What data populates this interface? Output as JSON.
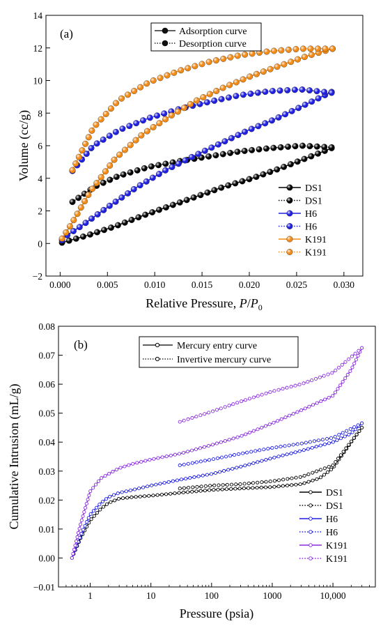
{
  "chart_data": [
    {
      "type": "line",
      "panel_label": "(a)",
      "xlabel_prefix": "Relative Pressure, ",
      "xlabel_var": "P",
      "xlabel_slash": "/",
      "xlabel_var2": "P",
      "xlabel_sub": "0",
      "ylabel": "Volume  (cc/g)",
      "xlim": [
        -0.0015,
        0.032
      ],
      "ylim": [
        -2,
        14
      ],
      "xticks": [
        0.0,
        0.005,
        0.01,
        0.015,
        0.02,
        0.025,
        0.03
      ],
      "xtick_labels": [
        "0.000",
        "0.005",
        "0.010",
        "0.015",
        "0.020",
        "0.025",
        "0.030"
      ],
      "yticks": [
        -2,
        0,
        2,
        4,
        6,
        8,
        10,
        12,
        14
      ],
      "ytick_labels": [
        "−2",
        "0",
        "2",
        "4",
        "6",
        "8",
        "10",
        "12",
        "14"
      ],
      "style_legend": [
        {
          "label": "Adsorption curve",
          "dash": "solid"
        },
        {
          "label": "Desorption curve",
          "dash": "dotted"
        }
      ],
      "legend_position": "bottom-right",
      "series": [
        {
          "name": "DS1",
          "color": "#000000",
          "dash": "solid",
          "marker": "ball",
          "x": [
            0.0002,
            0.0029,
            0.0058,
            0.0087,
            0.0116,
            0.0145,
            0.0174,
            0.0203,
            0.0232,
            0.0261,
            0.0287
          ],
          "y": [
            0.05,
            0.5,
            1.05,
            1.7,
            2.3,
            2.9,
            3.5,
            4.0,
            4.6,
            5.25,
            5.85
          ]
        },
        {
          "name": "DS1",
          "color": "#000000",
          "dash": "dotted",
          "marker": "ball",
          "x": [
            0.0287,
            0.0255,
            0.0222,
            0.019,
            0.0158,
            0.0126,
            0.0094,
            0.0062,
            0.0037,
            0.0013
          ],
          "y": [
            5.9,
            6.0,
            5.85,
            5.65,
            5.35,
            5.05,
            4.7,
            4.15,
            3.5,
            2.55
          ]
        },
        {
          "name": "H6",
          "color": "#1f1fe0",
          "dash": "solid",
          "marker": "ball",
          "x": [
            0.0002,
            0.0006,
            0.0023,
            0.0052,
            0.0081,
            0.011,
            0.0139,
            0.0168,
            0.0197,
            0.0226,
            0.0255,
            0.0287
          ],
          "y": [
            0.2,
            0.45,
            1.1,
            2.3,
            3.45,
            4.45,
            5.3,
            6.1,
            6.9,
            7.6,
            8.4,
            9.3
          ]
        },
        {
          "name": "H6",
          "color": "#1f1fe0",
          "dash": "dotted",
          "marker": "ball",
          "x": [
            0.0287,
            0.0255,
            0.0222,
            0.019,
            0.0158,
            0.0126,
            0.0094,
            0.0062,
            0.0035,
            0.0013
          ],
          "y": [
            9.25,
            9.45,
            9.35,
            9.1,
            8.7,
            8.25,
            7.7,
            6.95,
            6.0,
            4.45
          ]
        },
        {
          "name": "K191",
          "color": "#f28a16",
          "dash": "solid",
          "marker": "ball",
          "x": [
            0.0002,
            0.0012,
            0.0032,
            0.0058,
            0.0087,
            0.0116,
            0.0145,
            0.0174,
            0.0203,
            0.0232,
            0.0261,
            0.0288
          ],
          "y": [
            0.3,
            1.2,
            3.2,
            5.2,
            6.7,
            7.8,
            8.8,
            9.6,
            10.3,
            10.9,
            11.5,
            11.95
          ]
        },
        {
          "name": "K191",
          "color": "#f28a16",
          "dash": "dotted",
          "marker": "ball",
          "x": [
            0.0288,
            0.0255,
            0.0222,
            0.019,
            0.0158,
            0.0126,
            0.0094,
            0.0062,
            0.0035,
            0.0013
          ],
          "y": [
            11.95,
            11.95,
            11.8,
            11.55,
            11.15,
            10.6,
            9.9,
            8.8,
            7.1,
            4.5
          ]
        }
      ]
    },
    {
      "type": "line",
      "panel_label": "(b)",
      "xlabel": "Pressure (psia)",
      "ylabel": "Cumulative Intrusion (mL/g)",
      "x_scale": "log",
      "xlim": [
        0.3,
        50000
      ],
      "ylim": [
        -0.01,
        0.08
      ],
      "xticks": [
        1,
        10,
        100,
        1000,
        10000
      ],
      "xtick_labels": [
        "1",
        "10",
        "100",
        "1000",
        "10,000"
      ],
      "yticks": [
        -0.01,
        0.0,
        0.01,
        0.02,
        0.03,
        0.04,
        0.05,
        0.06,
        0.07,
        0.08
      ],
      "ytick_labels": [
        "−0.01",
        "0.00",
        "0.01",
        "0.02",
        "0.03",
        "0.04",
        "0.05",
        "0.06",
        "0.07",
        "0.08"
      ],
      "style_legend": [
        {
          "label": "Mercury entry curve",
          "dash": "solid"
        },
        {
          "label": "Invertive mercury curve",
          "dash": "dotted"
        }
      ],
      "legend_position": "bottom-right",
      "series": [
        {
          "name": "DS1",
          "color": "#000000",
          "dash": "solid",
          "marker": "ring",
          "x": [
            0.5,
            0.7,
            1,
            1.5,
            2,
            3,
            5,
            10,
            30,
            100,
            300,
            1000,
            3000,
            6000,
            10000,
            20000,
            30000
          ],
          "y": [
            0.0,
            0.007,
            0.013,
            0.017,
            0.019,
            0.0205,
            0.021,
            0.0215,
            0.0225,
            0.0235,
            0.024,
            0.0245,
            0.0255,
            0.0275,
            0.031,
            0.04,
            0.045
          ]
        },
        {
          "name": "DS1",
          "color": "#000000",
          "dash": "dotted",
          "marker": "ring",
          "x": [
            30000,
            10000,
            3000,
            1000,
            300,
            100,
            30
          ],
          "y": [
            0.045,
            0.032,
            0.028,
            0.0265,
            0.0255,
            0.025,
            0.024
          ]
        },
        {
          "name": "H6",
          "color": "#1f1fe0",
          "dash": "solid",
          "marker": "ring",
          "x": [
            0.5,
            0.7,
            1,
            1.5,
            2,
            3,
            5,
            10,
            30,
            100,
            300,
            1000,
            3000,
            10000,
            20000,
            30000
          ],
          "y": [
            0.0,
            0.008,
            0.015,
            0.019,
            0.021,
            0.0225,
            0.0235,
            0.025,
            0.027,
            0.029,
            0.0315,
            0.0345,
            0.037,
            0.04,
            0.043,
            0.0465
          ]
        },
        {
          "name": "H6",
          "color": "#1f1fe0",
          "dash": "dotted",
          "marker": "ring",
          "x": [
            30000,
            10000,
            3000,
            1000,
            300,
            100,
            30
          ],
          "y": [
            0.0465,
            0.0415,
            0.0395,
            0.038,
            0.036,
            0.034,
            0.032
          ]
        },
        {
          "name": "K191",
          "color": "#8a2be2",
          "dash": "solid",
          "marker": "ring",
          "x": [
            0.5,
            0.7,
            1,
            1.5,
            2,
            3,
            5,
            10,
            30,
            100,
            300,
            1000,
            3000,
            10000,
            20000,
            30000
          ],
          "y": [
            0.0,
            0.012,
            0.023,
            0.0275,
            0.029,
            0.031,
            0.0325,
            0.034,
            0.036,
            0.039,
            0.042,
            0.0465,
            0.051,
            0.056,
            0.065,
            0.0725
          ]
        },
        {
          "name": "K191",
          "color": "#8a2be2",
          "dash": "dotted",
          "marker": "ring",
          "x": [
            30000,
            10000,
            3000,
            1000,
            300,
            100,
            30
          ],
          "y": [
            0.0725,
            0.064,
            0.06,
            0.0575,
            0.054,
            0.0505,
            0.047
          ]
        }
      ]
    }
  ]
}
